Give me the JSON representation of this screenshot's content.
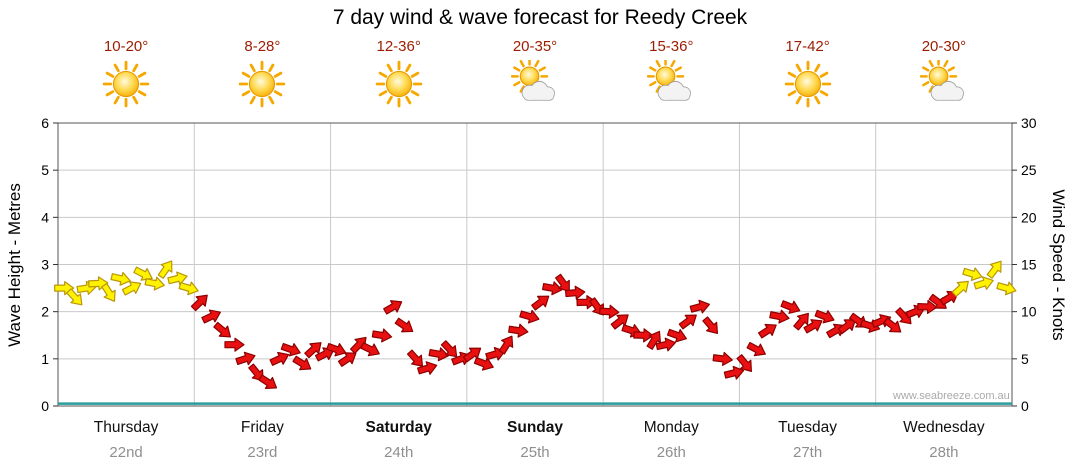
{
  "title": "7 day wind & wave forecast for Reedy Creek",
  "watermark": "www.seabreeze.com.au",
  "axes": {
    "left_label": "Wave Height - Metres",
    "right_label": "Wind Speed - Knots",
    "left_ticks": [
      0,
      1,
      2,
      3,
      4,
      5,
      6
    ],
    "right_ticks": [
      0,
      5,
      10,
      15,
      20,
      25,
      30
    ]
  },
  "days": [
    {
      "name": "Thursday",
      "date": "22nd",
      "temp": "10-20°",
      "icon": "sunny",
      "bold": false
    },
    {
      "name": "Friday",
      "date": "23rd",
      "temp": "8-28°",
      "icon": "sunny",
      "bold": false
    },
    {
      "name": "Saturday",
      "date": "24th",
      "temp": "12-36°",
      "icon": "sunny",
      "bold": true
    },
    {
      "name": "Sunday",
      "date": "25th",
      "temp": "20-35°",
      "icon": "partly-cloudy",
      "bold": true
    },
    {
      "name": "Monday",
      "date": "26th",
      "temp": "15-36°",
      "icon": "partly-cloudy",
      "bold": false
    },
    {
      "name": "Tuesday",
      "date": "27th",
      "temp": "17-42°",
      "icon": "sunny",
      "bold": false
    },
    {
      "name": "Wednesday",
      "date": "28th",
      "temp": "20-30°",
      "icon": "partly-cloudy",
      "bold": false
    }
  ],
  "chart_data": {
    "type": "scatter",
    "title": "7 day wind & wave forecast for Reedy Creek",
    "x_categories": [
      "Thursday",
      "Friday",
      "Saturday",
      "Sunday",
      "Monday",
      "Tuesday",
      "Wednesday"
    ],
    "points_per_day": 12,
    "ylabel_left": "Wave Height - Metres",
    "ylabel_right": "Wind Speed - Knots",
    "ylim_left": [
      0,
      6
    ],
    "ylim_right": [
      0,
      30
    ],
    "grid": true,
    "series": [
      {
        "name": "Wind Speed",
        "unit": "knots",
        "axis": "right",
        "marker": "arrow",
        "values": [
          12.5,
          11.5,
          12.5,
          13,
          12,
          13.5,
          12.5,
          14,
          13,
          14.5,
          13.5,
          12.5,
          11,
          9.5,
          8,
          6.5,
          5,
          3.5,
          2.5,
          5,
          6,
          4.5,
          6,
          5.5,
          6,
          5,
          6.5,
          6,
          7.5,
          10.5,
          8.5,
          5,
          4,
          5.5,
          6,
          5,
          5.5,
          4.5,
          5.5,
          6.5,
          8,
          9.5,
          11,
          12.5,
          13,
          12,
          11,
          10.5,
          10,
          9,
          8,
          7.5,
          7,
          6.5,
          7.5,
          9,
          10.5,
          8.5,
          5,
          3.5,
          4.5,
          6,
          8,
          9.5,
          10.5,
          9,
          8.5,
          9.5,
          8,
          8.5,
          9,
          8.5,
          9,
          8.5,
          9.5,
          10,
          10.5,
          11,
          11.5,
          12.5,
          14,
          13,
          14.5,
          12.5
        ],
        "colors": [
          "y",
          "y",
          "y",
          "y",
          "y",
          "y",
          "y",
          "y",
          "y",
          "y",
          "y",
          "y",
          "r",
          "r",
          "r",
          "r",
          "r",
          "r",
          "r",
          "r",
          "r",
          "r",
          "r",
          "r",
          "r",
          "r",
          "r",
          "r",
          "r",
          "r",
          "r",
          "r",
          "r",
          "r",
          "r",
          "r",
          "r",
          "r",
          "r",
          "r",
          "r",
          "r",
          "r",
          "r",
          "r",
          "r",
          "r",
          "r",
          "r",
          "r",
          "r",
          "r",
          "r",
          "r",
          "r",
          "r",
          "r",
          "r",
          "r",
          "r",
          "r",
          "r",
          "r",
          "r",
          "r",
          "r",
          "r",
          "r",
          "r",
          "r",
          "r",
          "r",
          "r",
          "r",
          "r",
          "r",
          "r",
          "r",
          "r",
          "y",
          "y",
          "y",
          "y",
          "y"
        ]
      },
      {
        "name": "Wave Height",
        "unit": "metres",
        "axis": "left",
        "style": "line",
        "constant_value": 0.05,
        "color": "#2a9d9d"
      }
    ]
  },
  "colors": {
    "arrow_yellow_fill": "#fff200",
    "arrow_yellow_stroke": "#b8960b",
    "arrow_red_fill": "#e81010",
    "arrow_red_stroke": "#8c0000",
    "wave_line": "#2a9d9d",
    "grid": "#c9c9c9",
    "temp_text": "#9b1c00"
  }
}
